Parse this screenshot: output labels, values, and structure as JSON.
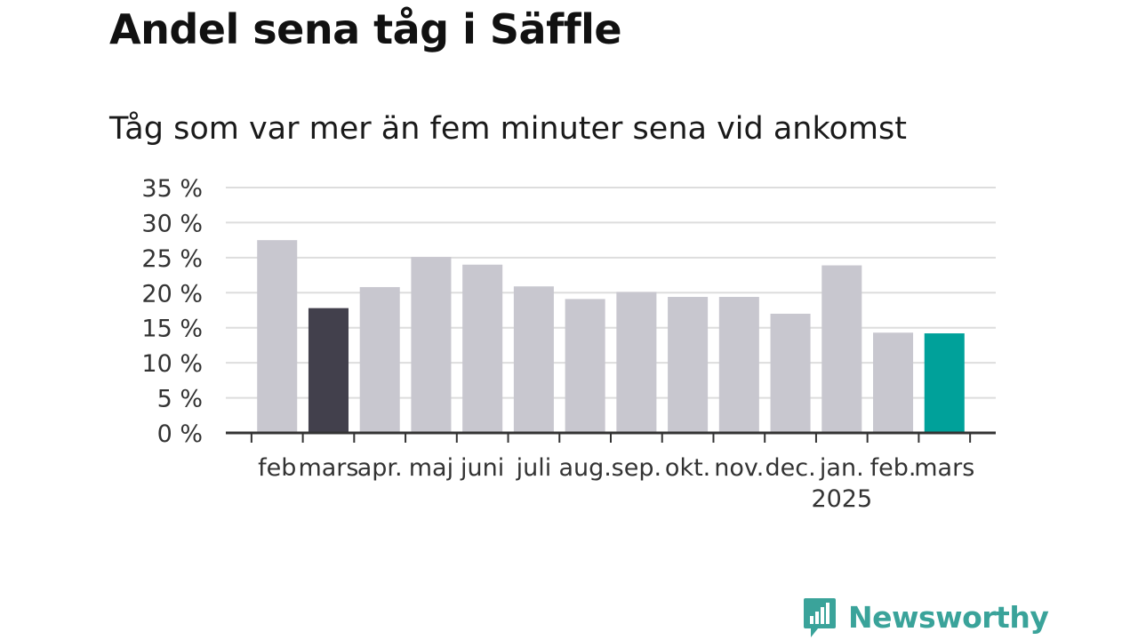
{
  "title": "Andel sena tåg i Säffle",
  "subtitle": "Tåg som var mer än fem minuter sena vid ankomst",
  "brand": {
    "name": "Newsworthy",
    "icon": "newsworthy-logo-icon",
    "color": "#3aa39a"
  },
  "colors": {
    "default_bar": "#c8c7cf",
    "highlight_prev": "#42404c",
    "highlight_current": "#00a19a",
    "grid": "#dddddd",
    "axis": "#333333"
  },
  "chart_data": {
    "type": "bar",
    "title": "Andel sena tåg i Säffle",
    "subtitle": "Tåg som var mer än fem minuter sena vid ankomst",
    "xlabel": "",
    "ylabel": "",
    "ylim": [
      0,
      35
    ],
    "yticks": [
      "0 %",
      "5 %",
      "10 %",
      "15 %",
      "20 %",
      "25 %",
      "30 %",
      "35 %"
    ],
    "categories": [
      "feb",
      "mars",
      "apr.",
      "maj",
      "juni",
      "juli",
      "aug.",
      "sep.",
      "okt.",
      "nov.",
      "dec.",
      "jan.",
      "feb.",
      "mars"
    ],
    "year_labels": [
      {
        "index": 11,
        "label": "2025"
      }
    ],
    "values": [
      27.5,
      17.8,
      20.8,
      25.1,
      24.0,
      20.9,
      19.1,
      20.1,
      19.4,
      19.4,
      17.0,
      23.9,
      14.3,
      14.2
    ],
    "highlight": [
      {
        "index": 1,
        "color": "#42404c"
      },
      {
        "index": 13,
        "color": "#00a19a"
      }
    ],
    "grid": true,
    "legend": "none"
  }
}
